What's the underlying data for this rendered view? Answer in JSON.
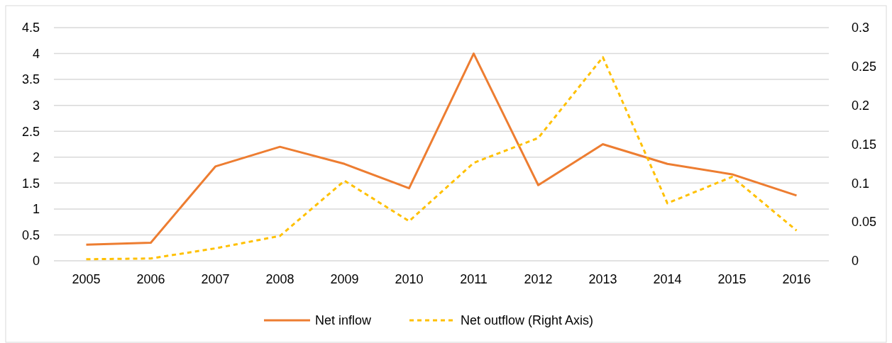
{
  "chart_data": {
    "type": "line",
    "categories": [
      "2005",
      "2006",
      "2007",
      "2008",
      "2009",
      "2010",
      "2011",
      "2012",
      "2013",
      "2014",
      "2015",
      "2016"
    ],
    "series": [
      {
        "name": "Net inflow",
        "color": "#ed7d31",
        "values": [
          0.31,
          0.35,
          1.82,
          2.2,
          1.87,
          1.4,
          4.0,
          1.46,
          2.25,
          1.87,
          1.67,
          1.26
        ],
        "line_style": "solid"
      },
      {
        "name": "Net outflow (Right Axis)",
        "color": "#ffc000",
        "axis": "y2",
        "values": [
          0.002,
          0.003,
          0.016,
          0.032,
          0.103,
          0.051,
          0.126,
          0.158,
          0.262,
          0.074,
          0.108,
          0.039
        ],
        "line_style": "dashed"
      }
    ],
    "ylim": [
      0,
      4.5
    ],
    "yticks": [
      0,
      0.5,
      1,
      1.5,
      2,
      2.5,
      3,
      3.5,
      4,
      4.5
    ],
    "y2lim": [
      0,
      0.3
    ],
    "y2ticks": [
      0,
      0.05,
      0.1,
      0.15,
      0.2,
      0.25,
      0.3
    ],
    "grid": "y",
    "legend": "bottom",
    "marker": "none"
  }
}
